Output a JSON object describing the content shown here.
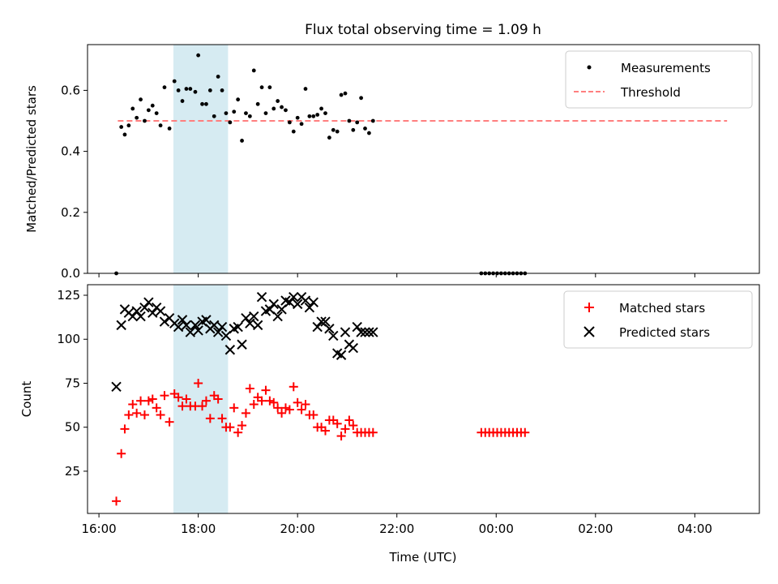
{
  "chart_data": [
    {
      "type": "scatter",
      "title": "Flux total observing time = 1.09 h",
      "ylabel": "Matched/Predicted stars",
      "xlim_hours": [
        15.77,
        29.3
      ],
      "ylim": [
        0,
        0.75
      ],
      "yticks": [
        0.0,
        0.2,
        0.4,
        0.6
      ],
      "ytick_labels": [
        "0.0",
        "0.2",
        "0.4",
        "0.6"
      ],
      "shaded_span_hours": [
        17.5,
        18.6
      ],
      "shade_color": "#add8e6",
      "legend_position": "upper right",
      "legend": {
        "measurements": "Measurements",
        "threshold": "Threshold"
      },
      "threshold": {
        "value": 0.5,
        "x_range_hours": [
          16.38,
          28.65
        ],
        "color": "#ff7f7f"
      },
      "series": [
        {
          "name": "Measurements",
          "marker": "dot",
          "color": "#000000",
          "x_hours": [
            16.35,
            16.45,
            16.52,
            16.6,
            16.68,
            16.76,
            16.84,
            16.92,
            17.0,
            17.08,
            17.16,
            17.24,
            17.32,
            17.42,
            17.52,
            17.6,
            17.68,
            17.76,
            17.84,
            17.94,
            18.0,
            18.08,
            18.16,
            18.24,
            18.32,
            18.4,
            18.48,
            18.56,
            18.64,
            18.72,
            18.8,
            18.88,
            18.96,
            19.04,
            19.12,
            19.2,
            19.28,
            19.36,
            19.44,
            19.52,
            19.6,
            19.68,
            19.76,
            19.84,
            19.92,
            20.0,
            20.08,
            20.16,
            20.24,
            20.32,
            20.4,
            20.48,
            20.56,
            20.64,
            20.72,
            20.8,
            20.88,
            20.96,
            21.04,
            21.12,
            21.2,
            21.28,
            21.36,
            21.44,
            21.52,
            23.7,
            23.78,
            23.86,
            23.94,
            24.02,
            24.1,
            24.18,
            24.26,
            24.34,
            24.42,
            24.5,
            24.58
          ],
          "y": [
            0.0,
            0.48,
            0.455,
            0.485,
            0.54,
            0.51,
            0.57,
            0.5,
            0.535,
            0.55,
            0.525,
            0.485,
            0.61,
            0.475,
            0.63,
            0.6,
            0.565,
            0.605,
            0.605,
            0.595,
            0.715,
            0.555,
            0.555,
            0.6,
            0.515,
            0.645,
            0.6,
            0.525,
            0.495,
            0.53,
            0.57,
            0.435,
            0.525,
            0.515,
            0.665,
            0.555,
            0.61,
            0.525,
            0.61,
            0.54,
            0.565,
            0.545,
            0.535,
            0.495,
            0.465,
            0.51,
            0.49,
            0.605,
            0.515,
            0.515,
            0.52,
            0.54,
            0.525,
            0.445,
            0.47,
            0.465,
            0.585,
            0.59,
            0.5,
            0.47,
            0.495,
            0.575,
            0.475,
            0.46,
            0.5,
            0.0,
            0.0,
            0.0,
            0.0,
            0.0,
            0.0,
            0.0,
            0.0,
            0.0,
            0.0,
            0.0,
            0.0
          ]
        }
      ]
    },
    {
      "type": "scatter",
      "xlabel": "Time (UTC)",
      "ylabel": "Count",
      "xlim_hours": [
        15.77,
        29.3
      ],
      "ylim": [
        1,
        131
      ],
      "yticks": [
        25,
        50,
        75,
        100,
        125
      ],
      "ytick_labels": [
        "25",
        "50",
        "75",
        "100",
        "125"
      ],
      "xticks_hours": [
        16,
        18,
        20,
        22,
        24,
        26,
        28
      ],
      "xtick_labels": [
        "16:00",
        "18:00",
        "20:00",
        "22:00",
        "00:00",
        "02:00",
        "04:00"
      ],
      "shaded_span_hours": [
        17.5,
        18.6
      ],
      "shade_color": "#add8e6",
      "legend_position": "upper right",
      "series": [
        {
          "name": "Matched stars",
          "marker": "plus",
          "color": "#ff0000",
          "x_hours": [
            16.35,
            16.45,
            16.52,
            16.6,
            16.68,
            16.76,
            16.84,
            16.92,
            17.0,
            17.08,
            17.16,
            17.24,
            17.32,
            17.42,
            17.52,
            17.6,
            17.68,
            17.76,
            17.84,
            17.94,
            18.0,
            18.08,
            18.16,
            18.24,
            18.32,
            18.4,
            18.48,
            18.56,
            18.64,
            18.72,
            18.8,
            18.88,
            18.96,
            19.04,
            19.12,
            19.2,
            19.28,
            19.36,
            19.44,
            19.52,
            19.6,
            19.68,
            19.76,
            19.84,
            19.92,
            20.0,
            20.08,
            20.16,
            20.24,
            20.32,
            20.4,
            20.48,
            20.56,
            20.64,
            20.72,
            20.8,
            20.88,
            20.96,
            21.04,
            21.12,
            21.2,
            21.28,
            21.36,
            21.44,
            21.52,
            23.7,
            23.78,
            23.86,
            23.94,
            24.02,
            24.1,
            24.18,
            24.26,
            24.34,
            24.42,
            24.5,
            24.58
          ],
          "y": [
            8,
            35,
            49,
            57,
            63,
            58,
            65,
            57,
            65,
            66,
            61,
            57,
            68,
            53,
            69,
            67,
            62,
            66,
            62,
            62,
            75,
            62,
            65,
            55,
            68,
            66,
            55,
            50,
            50,
            61,
            47,
            51,
            58,
            72,
            63,
            67,
            65,
            71,
            65,
            64,
            61,
            58,
            61,
            60,
            73,
            64,
            60,
            63,
            57,
            57,
            50,
            50,
            48,
            54,
            54,
            52,
            45,
            49,
            54,
            51,
            47,
            47,
            47,
            47,
            47,
            47,
            47,
            47,
            47,
            47,
            47,
            47,
            47,
            47,
            47,
            47,
            47
          ]
        },
        {
          "name": "Predicted stars",
          "marker": "x",
          "color": "#000000",
          "x_hours": [
            16.35,
            16.45,
            16.52,
            16.6,
            16.68,
            16.76,
            16.84,
            16.92,
            17.0,
            17.08,
            17.16,
            17.24,
            17.32,
            17.42,
            17.52,
            17.6,
            17.68,
            17.76,
            17.84,
            17.94,
            18.0,
            18.08,
            18.16,
            18.24,
            18.32,
            18.4,
            18.48,
            18.56,
            18.64,
            18.72,
            18.8,
            18.88,
            18.96,
            19.04,
            19.12,
            19.2,
            19.28,
            19.36,
            19.44,
            19.52,
            19.6,
            19.68,
            19.76,
            19.84,
            19.92,
            20.0,
            20.08,
            20.16,
            20.24,
            20.32,
            20.4,
            20.48,
            20.56,
            20.64,
            20.72,
            20.8,
            20.88,
            20.96,
            21.04,
            21.12,
            21.2,
            21.28,
            21.36,
            21.44,
            21.52
          ],
          "y": [
            73,
            108,
            117,
            115,
            113,
            116,
            113,
            118,
            121,
            115,
            118,
            116,
            110,
            112,
            109,
            107,
            111,
            108,
            104,
            108,
            105,
            110,
            111,
            106,
            108,
            104,
            107,
            102,
            94,
            106,
            107,
            97,
            112,
            109,
            113,
            108,
            124,
            116,
            117,
            120,
            113,
            117,
            122,
            121,
            124,
            120,
            124,
            122,
            118,
            121,
            107,
            110,
            110,
            106,
            102,
            92,
            91,
            104,
            97,
            95,
            107,
            104,
            104,
            104,
            104
          ]
        }
      ]
    }
  ]
}
